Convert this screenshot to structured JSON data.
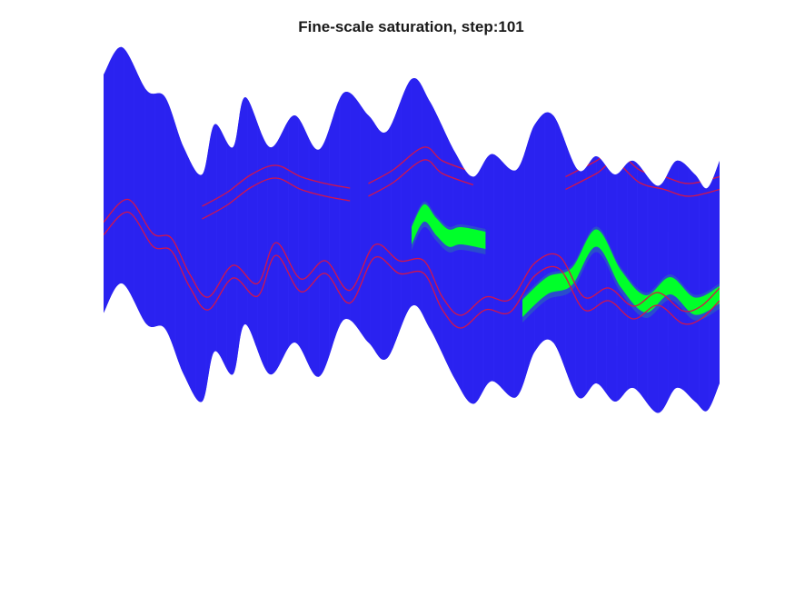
{
  "chart_data": {
    "type": "surface",
    "title": "Fine-scale saturation, step:101",
    "axes_visible": false,
    "colors": {
      "domain": "#2a22f0",
      "mesh": "#3a33ff",
      "well_outline": "#d4144a",
      "saturation_high": "#00ff2a",
      "saturation_low": "#2a6fb0"
    },
    "series": [
      {
        "kind": "domain-top-edge",
        "x": [
          0,
          0.03,
          0.07,
          0.1,
          0.13,
          0.16,
          0.18,
          0.21,
          0.23,
          0.27,
          0.31,
          0.35,
          0.39,
          0.43,
          0.46,
          0.5,
          0.53,
          0.57,
          0.6,
          0.63,
          0.67,
          0.7,
          0.73,
          0.77,
          0.8,
          0.83,
          0.86,
          0.9,
          0.93,
          0.96,
          0.98,
          1.0
        ],
        "y": [
          1.0,
          1.12,
          0.93,
          0.9,
          0.68,
          0.56,
          0.78,
          0.68,
          0.9,
          0.68,
          0.82,
          0.67,
          0.92,
          0.82,
          0.75,
          0.98,
          0.88,
          0.66,
          0.55,
          0.65,
          0.58,
          0.78,
          0.82,
          0.58,
          0.64,
          0.56,
          0.62,
          0.51,
          0.62,
          0.56,
          0.5,
          0.62
        ]
      },
      {
        "kind": "domain-bottom-edge",
        "x": [
          0,
          0.03,
          0.07,
          0.1,
          0.13,
          0.16,
          0.18,
          0.21,
          0.23,
          0.27,
          0.31,
          0.35,
          0.39,
          0.43,
          0.46,
          0.5,
          0.53,
          0.57,
          0.6,
          0.63,
          0.67,
          0.7,
          0.73,
          0.77,
          0.8,
          0.83,
          0.86,
          0.9,
          0.93,
          0.96,
          0.98,
          1.0
        ],
        "y": [
          -0.05,
          0.08,
          -0.1,
          -0.12,
          -0.32,
          -0.44,
          -0.22,
          -0.32,
          -0.1,
          -0.32,
          -0.18,
          -0.33,
          -0.08,
          -0.18,
          -0.25,
          -0.02,
          -0.12,
          -0.34,
          -0.45,
          -0.35,
          -0.42,
          -0.22,
          -0.18,
          -0.42,
          -0.36,
          -0.44,
          -0.38,
          -0.49,
          -0.38,
          -0.44,
          -0.48,
          -0.36
        ]
      },
      {
        "kind": "well-1",
        "x": [
          0,
          0.04,
          0.08,
          0.11,
          0.14,
          0.17,
          0.21,
          0.25,
          0.28,
          0.32,
          0.36,
          0.4,
          0.44,
          0.48,
          0.52,
          0.55,
          0.58,
          0.62,
          0.66,
          0.7,
          0.74,
          0.78,
          0.82,
          0.86,
          0.9,
          0.94,
          0.97,
          1.0
        ],
        "y": [
          0.35,
          0.45,
          0.3,
          0.28,
          0.12,
          0.02,
          0.16,
          0.08,
          0.26,
          0.1,
          0.18,
          0.05,
          0.25,
          0.18,
          0.18,
          0.02,
          -0.06,
          0.02,
          0.01,
          0.17,
          0.2,
          0.02,
          0.06,
          -0.02,
          0.04,
          -0.04,
          -0.02,
          0.06
        ]
      },
      {
        "kind": "well-2",
        "x": [
          0.16,
          0.2,
          0.24,
          0.28,
          0.32,
          0.36,
          0.4
        ],
        "y": [
          0.42,
          0.48,
          0.56,
          0.6,
          0.55,
          0.52,
          0.5
        ]
      },
      {
        "kind": "well-3",
        "x": [
          0.43,
          0.47,
          0.52,
          0.55,
          0.6
        ],
        "y": [
          0.52,
          0.58,
          0.68,
          0.62,
          0.57
        ]
      },
      {
        "kind": "well-4",
        "x": [
          0.75,
          0.8,
          0.83,
          0.87,
          0.91,
          0.95,
          1.0
        ],
        "y": [
          0.55,
          0.62,
          0.67,
          0.58,
          0.55,
          0.52,
          0.55
        ]
      }
    ],
    "saturation_plumes": [
      {
        "x": [
          0.5,
          0.52,
          0.54,
          0.56,
          0.58,
          0.62
        ],
        "y": [
          0.34,
          0.44,
          0.38,
          0.33,
          0.34,
          0.32
        ]
      },
      {
        "x": [
          0.68,
          0.72,
          0.76,
          0.8,
          0.84,
          0.88,
          0.92,
          0.96,
          1.0
        ],
        "y": [
          0.02,
          0.12,
          0.16,
          0.33,
          0.15,
          0.04,
          0.12,
          0.03,
          0.08
        ]
      }
    ]
  }
}
